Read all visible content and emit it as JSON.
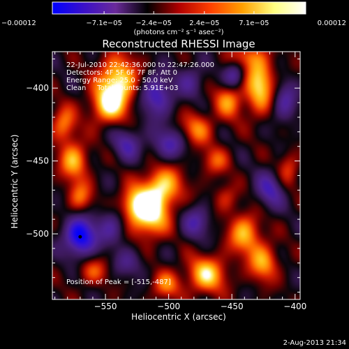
{
  "chart_data": {
    "type": "heatmap",
    "title": "Reconstructed RHESSI Image",
    "info_lines": [
      "22-Jul-2010 22:42:36.000 to 22:47:26.000",
      "Detectors: 4F 5F 6F 7F 8F, Att 0",
      "Energy Range: 25.0 - 50.0 keV",
      "Clean     Total counts: 5.91E+03"
    ],
    "peak_label": "Position of Peak = [-515,-487]",
    "peak": [
      -515,
      -487
    ],
    "xlabel": "Heliocentric X (arcsec)",
    "ylabel": "Heliocentric Y (arcsec)",
    "xlim": [
      -592,
      -396
    ],
    "ylim": [
      -545,
      -375
    ],
    "x_ticks": [
      -550,
      -500,
      -450,
      -400
    ],
    "x_tick_labels": [
      "−550",
      "−500",
      "−450",
      "−400"
    ],
    "y_ticks": [
      -400,
      -450,
      -500
    ],
    "y_tick_labels": [
      "−400",
      "−450",
      "−500"
    ],
    "colorbar": {
      "unit_label": "(photons cm⁻² s⁻¹ asec⁻²)",
      "range": [
        -0.00012,
        0.00012
      ],
      "ticks": [
        -0.00012,
        -7.1e-05,
        -2.4e-05,
        2.4e-05,
        7.1e-05,
        0.00012
      ],
      "tick_labels": [
        "−0.00012",
        "−7.1e−05",
        "−2.4e−05",
        "2.4e−05",
        "7.1e−05",
        "0.00012"
      ],
      "colors": [
        "#0000ff",
        "#3b10c8",
        "#6a2a9a",
        "#000000",
        "#b00000",
        "#ff4000",
        "#ffa000",
        "#ffff80",
        "#ffffff"
      ]
    },
    "blobs": [
      {
        "x": -540,
        "y": -395,
        "v": 0.95,
        "sx": 11,
        "sy": 12
      },
      {
        "x": -548,
        "y": -412,
        "v": 0.8,
        "sx": 10,
        "sy": 9
      },
      {
        "x": -428,
        "y": -397,
        "v": 0.9,
        "sx": 8,
        "sy": 14
      },
      {
        "x": -452,
        "y": -408,
        "v": 0.65,
        "sx": 8,
        "sy": 9
      },
      {
        "x": -440,
        "y": -378,
        "v": 0.45,
        "sx": 9,
        "sy": 6
      },
      {
        "x": -515,
        "y": -487,
        "v": 1.0,
        "sx": 10,
        "sy": 11
      },
      {
        "x": -505,
        "y": -468,
        "v": 0.85,
        "sx": 11,
        "sy": 10
      },
      {
        "x": -528,
        "y": -480,
        "v": 0.7,
        "sx": 8,
        "sy": 8
      },
      {
        "x": -575,
        "y": -450,
        "v": 0.75,
        "sx": 8,
        "sy": 9
      },
      {
        "x": -570,
        "y": -475,
        "v": 0.55,
        "sx": 7,
        "sy": 8
      },
      {
        "x": -583,
        "y": -425,
        "v": 0.6,
        "sx": 7,
        "sy": 9
      },
      {
        "x": -478,
        "y": -428,
        "v": 0.6,
        "sx": 9,
        "sy": 8
      },
      {
        "x": -463,
        "y": -450,
        "v": 0.45,
        "sx": 8,
        "sy": 7
      },
      {
        "x": -440,
        "y": -500,
        "v": 0.75,
        "sx": 9,
        "sy": 10
      },
      {
        "x": -425,
        "y": -520,
        "v": 0.7,
        "sx": 8,
        "sy": 9
      },
      {
        "x": -470,
        "y": -528,
        "v": 0.85,
        "sx": 11,
        "sy": 9
      },
      {
        "x": -502,
        "y": -535,
        "v": 0.55,
        "sx": 8,
        "sy": 7
      },
      {
        "x": -560,
        "y": -525,
        "v": 0.45,
        "sx": 9,
        "sy": 7
      },
      {
        "x": -455,
        "y": -475,
        "v": 0.35,
        "sx": 7,
        "sy": 7
      },
      {
        "x": -405,
        "y": -455,
        "v": 0.4,
        "sx": 6,
        "sy": 9
      },
      {
        "x": -570,
        "y": -502,
        "v": -1.0,
        "sx": 9,
        "sy": 10
      },
      {
        "x": -510,
        "y": -405,
        "v": -0.7,
        "sx": 9,
        "sy": 10
      },
      {
        "x": -500,
        "y": -438,
        "v": -0.55,
        "sx": 10,
        "sy": 8
      },
      {
        "x": -533,
        "y": -438,
        "v": -0.5,
        "sx": 8,
        "sy": 8
      },
      {
        "x": -448,
        "y": -392,
        "v": -0.6,
        "sx": 6,
        "sy": 7
      },
      {
        "x": -408,
        "y": -410,
        "v": -0.5,
        "sx": 7,
        "sy": 10
      },
      {
        "x": -420,
        "y": -470,
        "v": -0.55,
        "sx": 8,
        "sy": 9
      },
      {
        "x": -478,
        "y": -492,
        "v": -0.5,
        "sx": 8,
        "sy": 8
      },
      {
        "x": -545,
        "y": -495,
        "v": -0.45,
        "sx": 8,
        "sy": 9
      },
      {
        "x": -482,
        "y": -395,
        "v": -0.4,
        "sx": 8,
        "sy": 8
      },
      {
        "x": -532,
        "y": -520,
        "v": -0.35,
        "sx": 9,
        "sy": 7
      }
    ]
  },
  "footer": {
    "date": "2-Aug-2013 21:34"
  }
}
